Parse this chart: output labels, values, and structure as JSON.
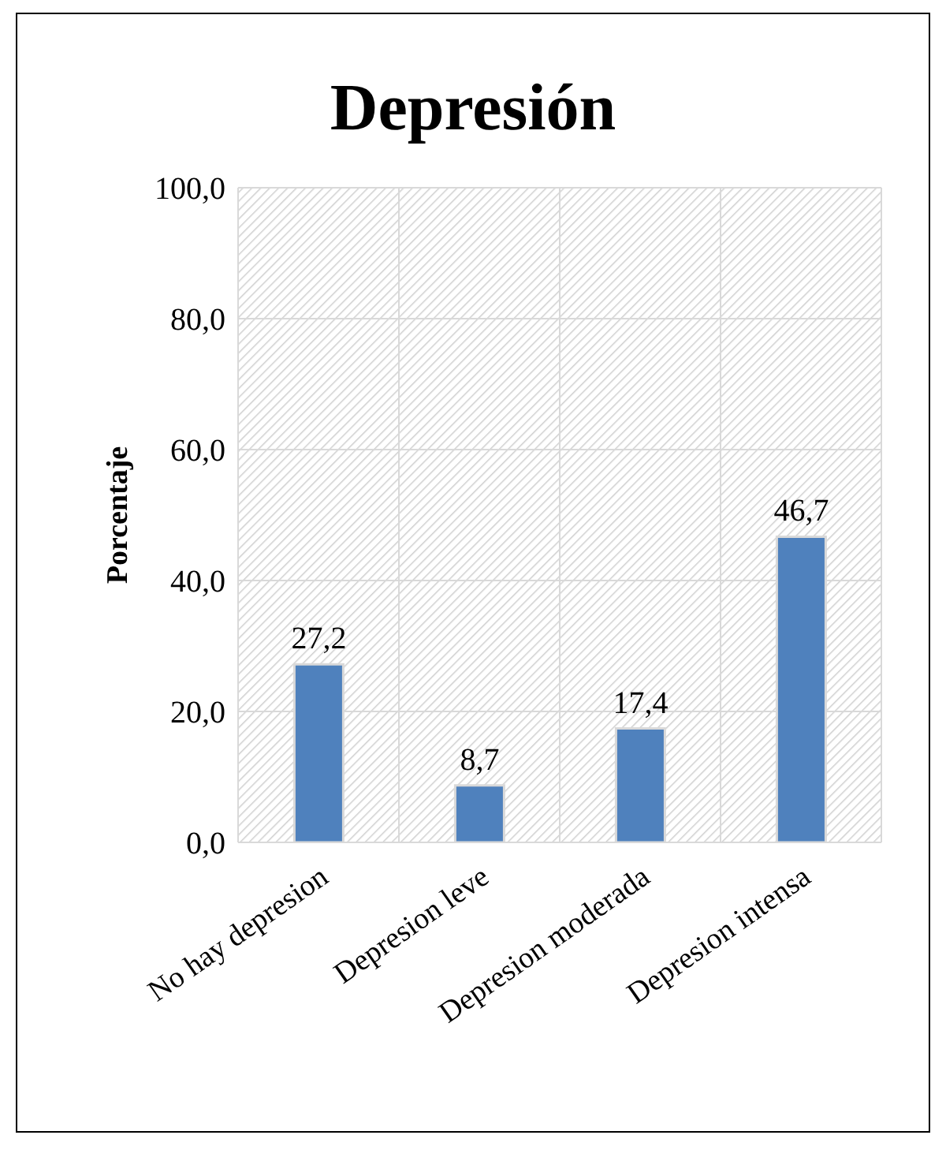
{
  "chart_data": {
    "type": "bar",
    "title": "Depresión",
    "ylabel": "Porcentaje",
    "categories": [
      "No hay depresion",
      "Depresion leve",
      "Depresion moderada",
      "Depresion intensa"
    ],
    "values": [
      27.2,
      8.7,
      17.4,
      46.7
    ],
    "value_labels": [
      "27,2",
      "8,7",
      "17,4",
      "46,7"
    ],
    "color": "#4f81bd",
    "ylim": [
      0,
      100
    ],
    "yticks": [
      {
        "value": 0,
        "label": "0,0"
      },
      {
        "value": 20,
        "label": "20,0"
      },
      {
        "value": 40,
        "label": "40,0"
      },
      {
        "value": 60,
        "label": "60,0"
      },
      {
        "value": 80,
        "label": "80,0"
      },
      {
        "value": 100,
        "label": "100,0"
      }
    ],
    "grid": true
  }
}
